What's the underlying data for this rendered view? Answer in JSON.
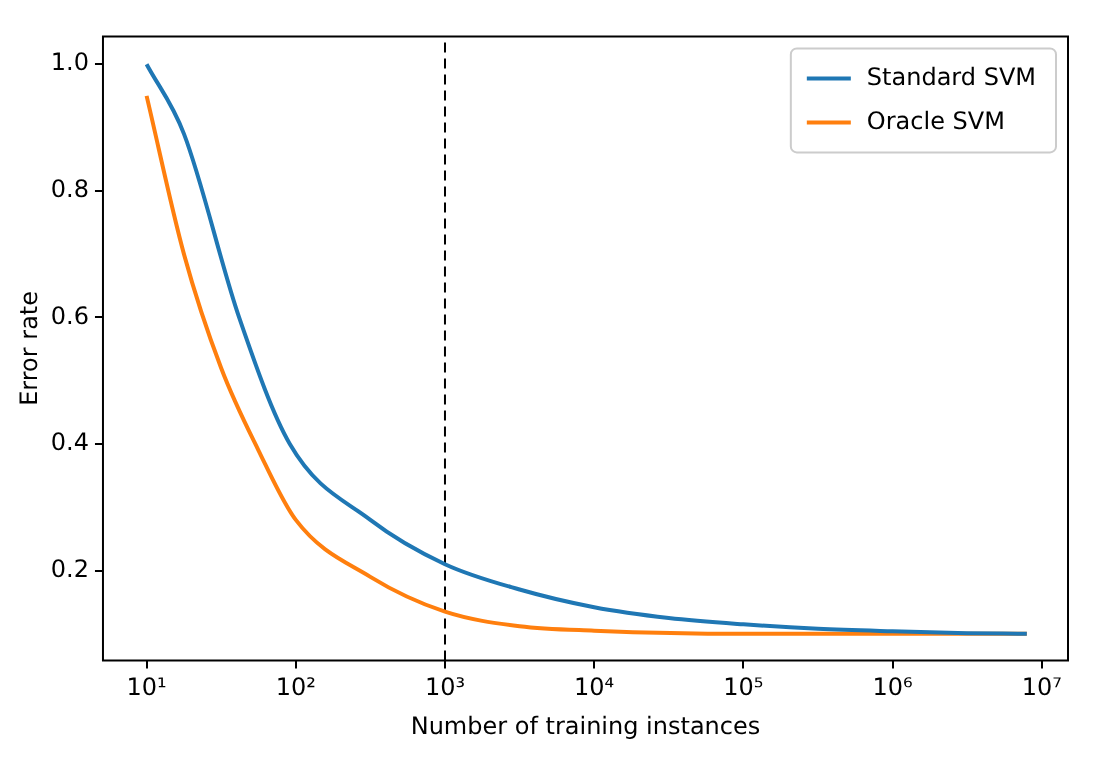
{
  "chart_data": {
    "type": "line",
    "xlabel": "Number of training instances",
    "ylabel": "Error rate",
    "log": "x",
    "legend": "top right",
    "grid": false,
    "marker": "none",
    "line_style": "solid",
    "xlim": [
      5.1,
      15000000
    ],
    "ylim": [
      0.058,
      1.044
    ],
    "xticks": [
      {
        "value": 10,
        "label": "10¹"
      },
      {
        "value": 100,
        "label": "10²"
      },
      {
        "value": 1000,
        "label": "10³"
      },
      {
        "value": 10000,
        "label": "10⁴"
      },
      {
        "value": 100000,
        "label": "10⁵"
      },
      {
        "value": 1000000,
        "label": "10⁶"
      },
      {
        "value": 10000000,
        "label": "10⁷"
      }
    ],
    "yticks": [
      0.2,
      0.4,
      0.6,
      0.8,
      {
        "value": 1,
        "label": "1.0"
      }
    ],
    "ref_lines": [
      {
        "axis": "x",
        "value": 1000,
        "color": "#000000",
        "line_style": "dashed"
      }
    ],
    "series": [
      {
        "name": "Standard SVM",
        "color": "#1f77b4",
        "x": [
          10,
          17.8,
          41.7,
          91.2,
          316,
          1000,
          3162,
          10000,
          31623,
          100000,
          316228,
          1000000,
          3162278,
          7943282
        ],
        "values": [
          1.0,
          0.89,
          0.6,
          0.4,
          0.28,
          0.21,
          0.17,
          0.142,
          0.125,
          0.115,
          0.108,
          0.104,
          0.101,
          0.1
        ]
      },
      {
        "name": "Oracle SVM",
        "color": "#ff7f0e",
        "x": [
          10,
          17.8,
          31.6,
          56.2,
          100,
          316,
          1000,
          3162,
          10000,
          100000,
          1000000,
          7943282
        ],
        "values": [
          0.95,
          0.7,
          0.52,
          0.39,
          0.28,
          0.19,
          0.135,
          0.112,
          0.105,
          0.1,
          0.1,
          0.1
        ]
      }
    ]
  }
}
